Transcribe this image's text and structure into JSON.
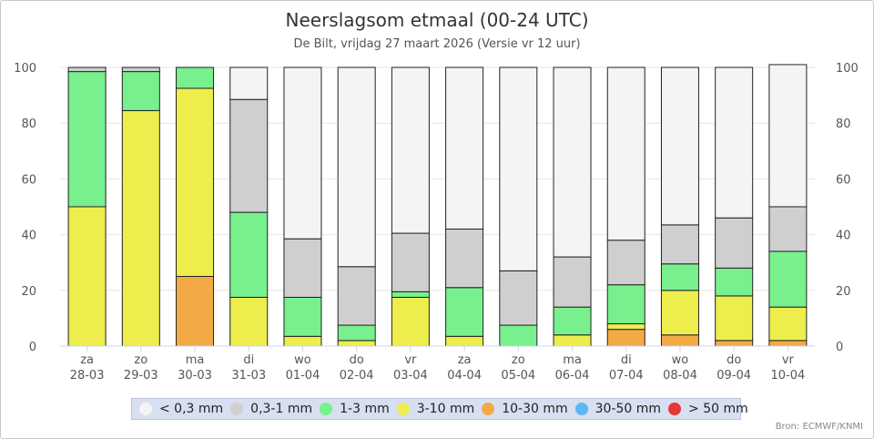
{
  "chart_data": {
    "type": "bar",
    "stacked": true,
    "title": "Neerslagsom etmaal (00-24 UTC)",
    "subtitle": "De Bilt, vrijdag 27 maart 2026 (Versie vr 12 uur)",
    "ylim": [
      0,
      100
    ],
    "yticks": [
      0,
      20,
      40,
      60,
      80,
      100
    ],
    "categories": [
      {
        "day": "za",
        "date": "28-03"
      },
      {
        "day": "zo",
        "date": "29-03"
      },
      {
        "day": "ma",
        "date": "30-03"
      },
      {
        "day": "di",
        "date": "31-03"
      },
      {
        "day": "wo",
        "date": "01-04"
      },
      {
        "day": "do",
        "date": "02-04"
      },
      {
        "day": "vr",
        "date": "03-04"
      },
      {
        "day": "za",
        "date": "04-04"
      },
      {
        "day": "zo",
        "date": "05-04"
      },
      {
        "day": "ma",
        "date": "06-04"
      },
      {
        "day": "di",
        "date": "07-04"
      },
      {
        "day": "wo",
        "date": "08-04"
      },
      {
        "day": "do",
        "date": "09-04"
      },
      {
        "day": "vr",
        "date": "10-04"
      }
    ],
    "series": [
      {
        "name": "> 50 mm",
        "color": "#e53935",
        "values": [
          0,
          0,
          0,
          0,
          0,
          0,
          0,
          0,
          0,
          0,
          0,
          0,
          0,
          0
        ]
      },
      {
        "name": "30-50 mm",
        "color": "#5ab8f0",
        "values": [
          0,
          0,
          0,
          0,
          0,
          0,
          0,
          0,
          0,
          0,
          0,
          0,
          0,
          0
        ]
      },
      {
        "name": "10-30 mm",
        "color": "#f2aa47",
        "values": [
          0,
          0,
          25,
          0,
          0,
          0,
          0,
          0,
          0,
          0,
          6,
          4,
          2,
          2
        ]
      },
      {
        "name": "3-10 mm",
        "color": "#eded4e",
        "values": [
          50,
          84.5,
          67.5,
          17.5,
          3.5,
          2,
          17.5,
          3.5,
          0,
          4,
          2,
          16,
          16,
          12
        ]
      },
      {
        "name": "1-3 mm",
        "color": "#78f08e",
        "values": [
          48.5,
          14,
          7.5,
          30.5,
          14,
          5.5,
          2,
          17.5,
          7.5,
          10,
          14,
          9.5,
          10,
          20
        ]
      },
      {
        "name": "0,3-1 mm",
        "color": "#d0cfcf",
        "values": [
          1.5,
          1.5,
          0,
          40.5,
          21,
          21,
          21,
          21,
          19.5,
          18,
          16,
          14,
          18,
          16
        ]
      },
      {
        "name": "< 0,3 mm",
        "color": "#f4f4f4",
        "values": [
          0,
          0,
          0,
          11.5,
          61.5,
          71.5,
          59.5,
          58,
          73,
          68,
          62,
          56.5,
          54,
          51
        ]
      }
    ],
    "legend": [
      {
        "label": "< 0,3 mm",
        "color": "#f4f4f4"
      },
      {
        "label": "0,3-1 mm",
        "color": "#d0cfcf"
      },
      {
        "label": "1-3 mm",
        "color": "#78f08e"
      },
      {
        "label": "3-10 mm",
        "color": "#eded4e"
      },
      {
        "label": "10-30 mm",
        "color": "#f2aa47"
      },
      {
        "label": "30-50 mm",
        "color": "#5ab8f0"
      },
      {
        "label": "> 50 mm",
        "color": "#e53935"
      }
    ],
    "legend_position": "bottom-center",
    "grid": true,
    "credit": "Bron: ECMWF/KNMI"
  }
}
